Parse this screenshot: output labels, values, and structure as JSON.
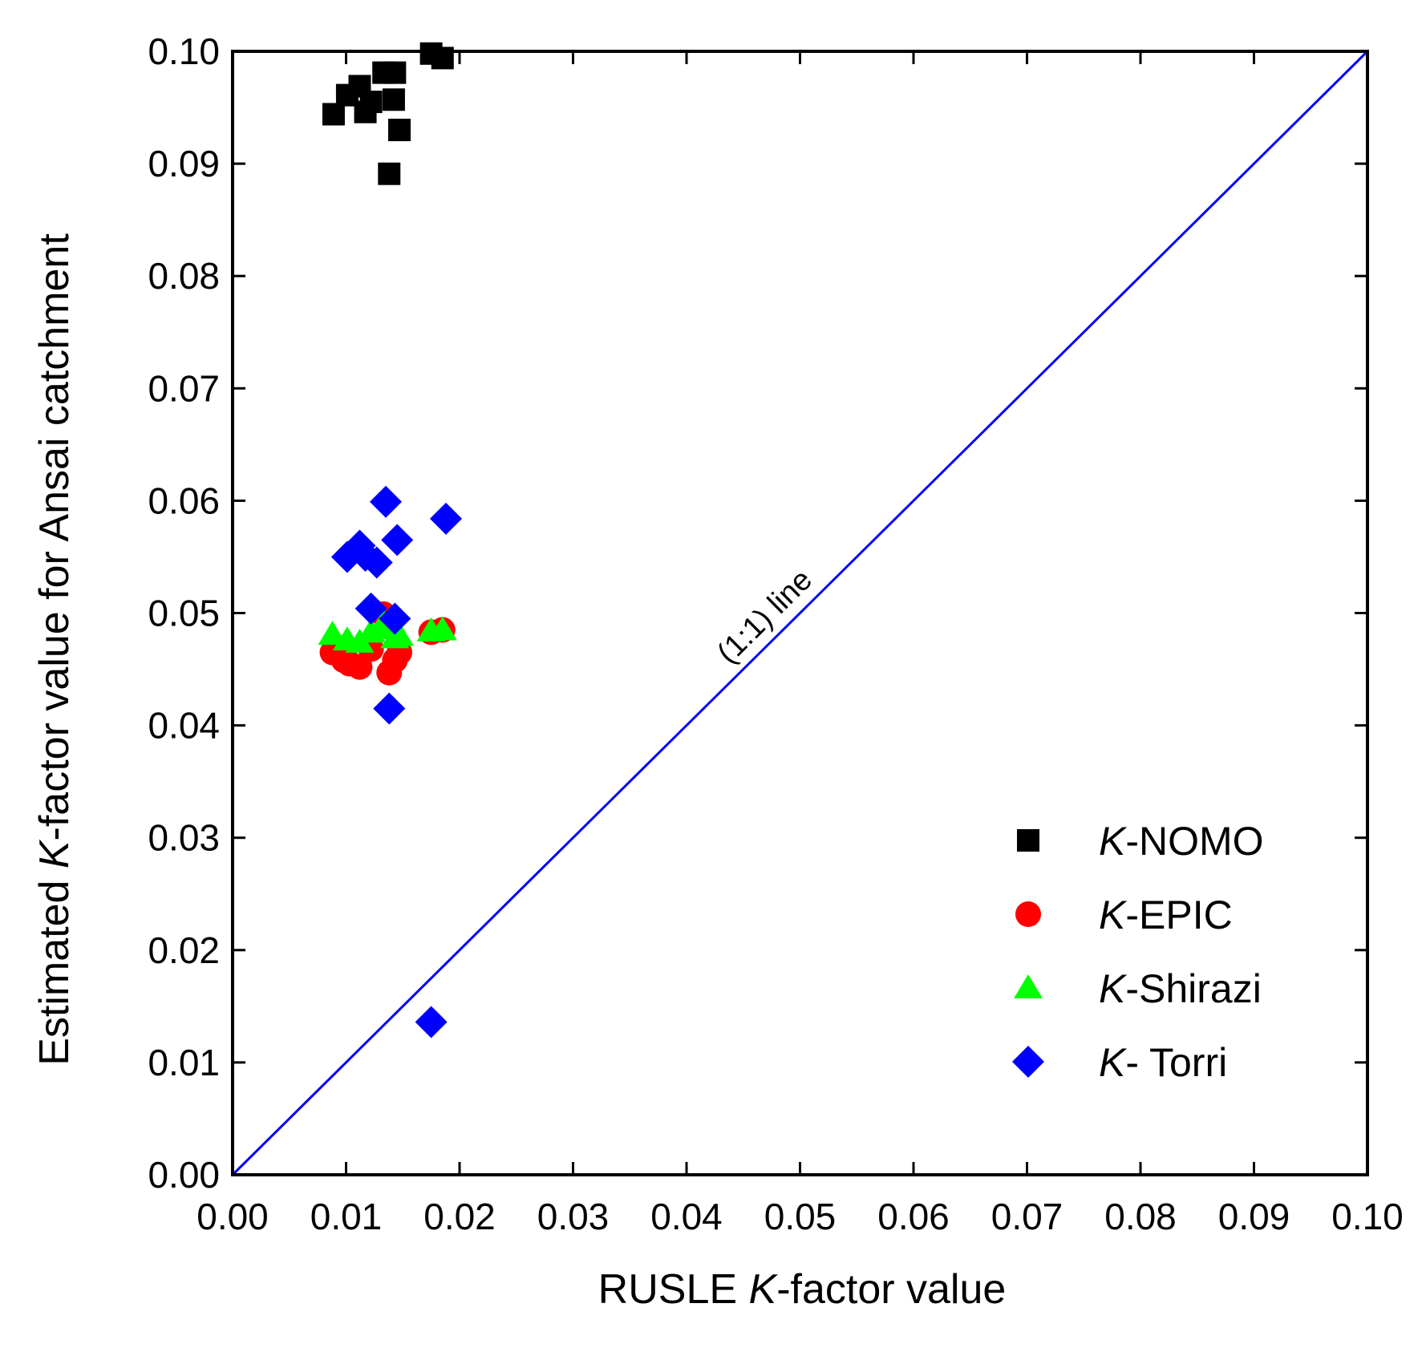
{
  "chart_data": {
    "type": "scatter",
    "xlabel": {
      "pre": "RUSLE ",
      "italic": "K",
      "post": "-factor value"
    },
    "ylabel": {
      "pre": "Estimated ",
      "italic": "K",
      "post": "-factor value for Ansai catchment"
    },
    "xlim": [
      0,
      0.1
    ],
    "ylim": [
      0,
      0.1
    ],
    "xticks": [
      "0.00",
      "0.01",
      "0.02",
      "0.03",
      "0.04",
      "0.05",
      "0.06",
      "0.07",
      "0.08",
      "0.09",
      "0.10"
    ],
    "yticks": [
      "0.00",
      "0.01",
      "0.02",
      "0.03",
      "0.04",
      "0.05",
      "0.06",
      "0.07",
      "0.08",
      "0.09",
      "0.10"
    ],
    "reference_line": {
      "label": "(1:1) line",
      "from": [
        0,
        0
      ],
      "to": [
        0.1,
        0.1
      ],
      "color": "#0000ff"
    },
    "legend_position": "bottom-right",
    "series": [
      {
        "name": {
          "italic": "K",
          "rest": "-NOMO"
        },
        "marker": "square",
        "color": "#000000",
        "points": [
          [
            0.0089,
            0.0944
          ],
          [
            0.0101,
            0.0961
          ],
          [
            0.0112,
            0.0969
          ],
          [
            0.0117,
            0.0946
          ],
          [
            0.0122,
            0.0955
          ],
          [
            0.0133,
            0.0981
          ],
          [
            0.0138,
            0.0891
          ],
          [
            0.0142,
            0.0957
          ],
          [
            0.0143,
            0.0981
          ],
          [
            0.0147,
            0.093
          ],
          [
            0.0175,
            0.0998
          ],
          [
            0.0185,
            0.0994
          ]
        ]
      },
      {
        "name": {
          "italic": "K",
          "rest": "-EPIC"
        },
        "marker": "circle",
        "color": "#ff0000",
        "points": [
          [
            0.0088,
            0.0465
          ],
          [
            0.0098,
            0.0458
          ],
          [
            0.0103,
            0.0455
          ],
          [
            0.0112,
            0.0452
          ],
          [
            0.0122,
            0.0468
          ],
          [
            0.0133,
            0.0499
          ],
          [
            0.0138,
            0.0447
          ],
          [
            0.0143,
            0.0458
          ],
          [
            0.0147,
            0.0465
          ],
          [
            0.0175,
            0.0483
          ],
          [
            0.0185,
            0.0485
          ]
        ]
      },
      {
        "name": {
          "italic": "K",
          "rest": "-Shirazi"
        },
        "marker": "triangle",
        "color": "#00ff00",
        "points": [
          [
            0.0088,
            0.0481
          ],
          [
            0.0101,
            0.0476
          ],
          [
            0.0112,
            0.0474
          ],
          [
            0.0122,
            0.0483
          ],
          [
            0.0133,
            0.0491
          ],
          [
            0.0138,
            0.0486
          ],
          [
            0.0143,
            0.0478
          ],
          [
            0.0147,
            0.048
          ],
          [
            0.0175,
            0.0484
          ],
          [
            0.0185,
            0.0485
          ]
        ]
      },
      {
        "name": {
          "italic": "K",
          "rest": "- Torri"
        },
        "marker": "diamond",
        "color": "#0000ff",
        "points": [
          [
            0.0101,
            0.055
          ],
          [
            0.0112,
            0.056
          ],
          [
            0.0117,
            0.0551
          ],
          [
            0.0122,
            0.0504
          ],
          [
            0.0127,
            0.0545
          ],
          [
            0.0135,
            0.0599
          ],
          [
            0.0138,
            0.0415
          ],
          [
            0.0143,
            0.0495
          ],
          [
            0.0145,
            0.0565
          ],
          [
            0.0175,
            0.0136
          ],
          [
            0.0188,
            0.0584
          ]
        ]
      }
    ]
  }
}
